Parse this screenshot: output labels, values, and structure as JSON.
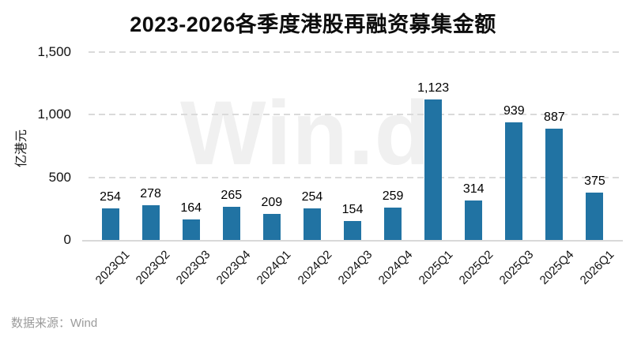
{
  "chart_data": {
    "type": "bar",
    "title": "2023-2026各季度港股再融资募集金额",
    "ylabel": "亿港元",
    "categories": [
      "2023Q1",
      "2023Q2",
      "2023Q3",
      "2023Q4",
      "2024Q1",
      "2024Q2",
      "2024Q3",
      "2024Q4",
      "2025Q1",
      "2025Q2",
      "2025Q3",
      "2025Q4",
      "2026Q1"
    ],
    "values": [
      254,
      278,
      164,
      265,
      209,
      254,
      154,
      259,
      1123,
      314,
      939,
      887,
      375
    ],
    "value_labels": [
      "254",
      "278",
      "164",
      "265",
      "209",
      "254",
      "154",
      "259",
      "1,123",
      "314",
      "939",
      "887",
      "375"
    ],
    "xlabel": "",
    "ylim": [
      0,
      1500
    ],
    "y_ticks": [
      {
        "label": "1,500",
        "value": 1500
      },
      {
        "label": "1,000",
        "value": 1000
      },
      {
        "label": "500",
        "value": 500
      },
      {
        "label": "0",
        "value": 0
      }
    ],
    "grid": "horizontal-dashed",
    "legend": "none",
    "bar_color": "#2173a3",
    "watermark": "Win.d"
  },
  "footer": {
    "source": "数据来源：Wind"
  }
}
